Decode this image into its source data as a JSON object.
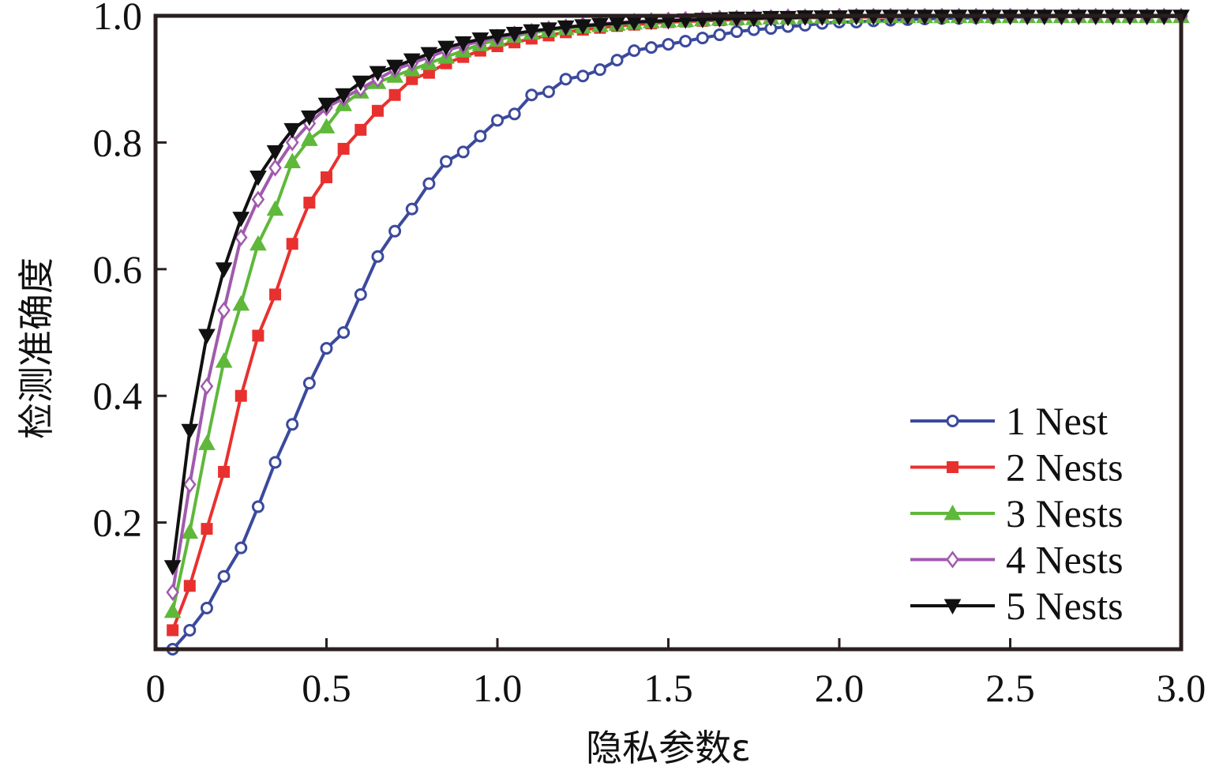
{
  "chart_data": {
    "type": "line",
    "title": "",
    "xlabel": "隐私参数ε",
    "ylabel": "检测准确度",
    "xlim": [
      0,
      3.0
    ],
    "ylim": [
      0,
      1.0
    ],
    "xticks": [
      0,
      0.5,
      1.0,
      1.5,
      2.0,
      2.5,
      3.0
    ],
    "xtick_labels": [
      "0",
      "0.5",
      "1.0",
      "1.5",
      "2.0",
      "2.5",
      "3.0"
    ],
    "yticks": [
      0.2,
      0.4,
      0.6,
      0.8,
      1.0
    ],
    "ytick_labels": [
      "0.2",
      "0.4",
      "0.6",
      "0.8",
      "1.0"
    ],
    "grid": false,
    "legend_position": "bottom-right",
    "x": [
      0.05,
      0.1,
      0.15,
      0.2,
      0.25,
      0.3,
      0.35,
      0.4,
      0.45,
      0.5,
      0.55,
      0.6,
      0.65,
      0.7,
      0.75,
      0.8,
      0.85,
      0.9,
      0.95,
      1.0,
      1.05,
      1.1,
      1.15,
      1.2,
      1.25,
      1.3,
      1.35,
      1.4,
      1.45,
      1.5,
      1.55,
      1.6,
      1.65,
      1.7,
      1.75,
      1.8,
      1.85,
      1.9,
      1.95,
      2.0,
      2.05,
      2.1,
      2.15,
      2.2,
      2.25,
      2.3,
      2.35,
      2.4,
      2.45,
      2.5,
      2.55,
      2.6,
      2.65,
      2.7,
      2.75,
      2.8,
      2.85,
      2.9,
      2.95,
      3.0
    ],
    "series": [
      {
        "name": "1 Nest",
        "color": "#3b4a9c",
        "marker": "circle",
        "values": [
          0.0,
          0.03,
          0.065,
          0.115,
          0.16,
          0.225,
          0.295,
          0.355,
          0.42,
          0.475,
          0.5,
          0.56,
          0.62,
          0.66,
          0.695,
          0.735,
          0.77,
          0.785,
          0.81,
          0.835,
          0.845,
          0.875,
          0.88,
          0.9,
          0.905,
          0.915,
          0.93,
          0.945,
          0.95,
          0.955,
          0.96,
          0.965,
          0.97,
          0.975,
          0.978,
          0.98,
          0.983,
          0.985,
          0.988,
          0.99,
          0.99,
          0.992,
          0.993,
          0.994,
          0.995,
          0.996,
          0.996,
          0.997,
          0.997,
          0.998,
          0.998,
          0.998,
          0.999,
          0.999,
          0.999,
          0.999,
          0.999,
          0.999,
          0.999,
          0.999
        ]
      },
      {
        "name": "2 Nests",
        "color": "#e8312f",
        "marker": "square",
        "values": [
          0.03,
          0.1,
          0.19,
          0.28,
          0.4,
          0.495,
          0.56,
          0.64,
          0.705,
          0.745,
          0.79,
          0.82,
          0.85,
          0.875,
          0.9,
          0.91,
          0.925,
          0.935,
          0.945,
          0.952,
          0.958,
          0.964,
          0.969,
          0.974,
          0.978,
          0.981,
          0.984,
          0.986,
          0.988,
          0.99,
          0.991,
          0.992,
          0.993,
          0.994,
          0.995,
          0.996,
          0.996,
          0.997,
          0.997,
          0.998,
          0.998,
          0.998,
          0.998,
          0.999,
          0.999,
          0.999,
          0.999,
          0.999,
          0.999,
          0.999,
          0.999,
          0.999,
          0.999,
          0.999,
          0.999,
          0.999,
          0.999,
          0.999,
          0.999,
          0.999
        ]
      },
      {
        "name": "3 Nests",
        "color": "#5fb83a",
        "marker": "triangle-up",
        "values": [
          0.06,
          0.185,
          0.325,
          0.455,
          0.545,
          0.64,
          0.695,
          0.77,
          0.805,
          0.825,
          0.86,
          0.88,
          0.895,
          0.905,
          0.915,
          0.925,
          0.935,
          0.945,
          0.955,
          0.962,
          0.968,
          0.973,
          0.977,
          0.98,
          0.983,
          0.985,
          0.987,
          0.989,
          0.991,
          0.992,
          0.993,
          0.994,
          0.995,
          0.996,
          0.996,
          0.997,
          0.997,
          0.998,
          0.998,
          0.998,
          0.999,
          0.999,
          0.999,
          0.999,
          0.999,
          0.999,
          0.999,
          0.999,
          0.999,
          0.999,
          0.999,
          0.999,
          0.999,
          0.999,
          0.999,
          0.999,
          0.999,
          0.999,
          0.999,
          0.999
        ]
      },
      {
        "name": "4 Nests",
        "color": "#a05aae",
        "marker": "diamond",
        "values": [
          0.09,
          0.26,
          0.415,
          0.535,
          0.65,
          0.71,
          0.76,
          0.8,
          0.83,
          0.855,
          0.87,
          0.885,
          0.9,
          0.915,
          0.925,
          0.935,
          0.945,
          0.953,
          0.96,
          0.966,
          0.971,
          0.975,
          0.979,
          0.982,
          0.985,
          0.987,
          0.989,
          0.991,
          0.992,
          0.993,
          0.994,
          0.995,
          0.996,
          0.996,
          0.997,
          0.997,
          0.998,
          0.998,
          0.998,
          0.999,
          0.999,
          0.999,
          0.999,
          0.999,
          0.999,
          0.999,
          0.999,
          0.999,
          0.999,
          0.999,
          0.999,
          0.999,
          0.999,
          0.999,
          0.999,
          0.999,
          0.999,
          0.999,
          0.999,
          0.999
        ]
      },
      {
        "name": "5 Nests",
        "color": "#111111",
        "marker": "triangle-down",
        "values": [
          0.13,
          0.345,
          0.495,
          0.6,
          0.68,
          0.745,
          0.785,
          0.82,
          0.84,
          0.86,
          0.875,
          0.895,
          0.91,
          0.92,
          0.93,
          0.94,
          0.95,
          0.957,
          0.963,
          0.968,
          0.972,
          0.976,
          0.979,
          0.982,
          0.984,
          0.986,
          0.988,
          0.99,
          0.991,
          0.992,
          0.993,
          0.994,
          0.995,
          0.996,
          0.996,
          0.997,
          0.997,
          0.998,
          0.998,
          0.998,
          0.999,
          0.999,
          0.999,
          0.999,
          0.999,
          0.999,
          0.999,
          0.999,
          0.999,
          0.999,
          0.999,
          0.999,
          0.999,
          0.999,
          0.999,
          0.999,
          0.999,
          0.999,
          0.999,
          0.999
        ]
      }
    ]
  }
}
